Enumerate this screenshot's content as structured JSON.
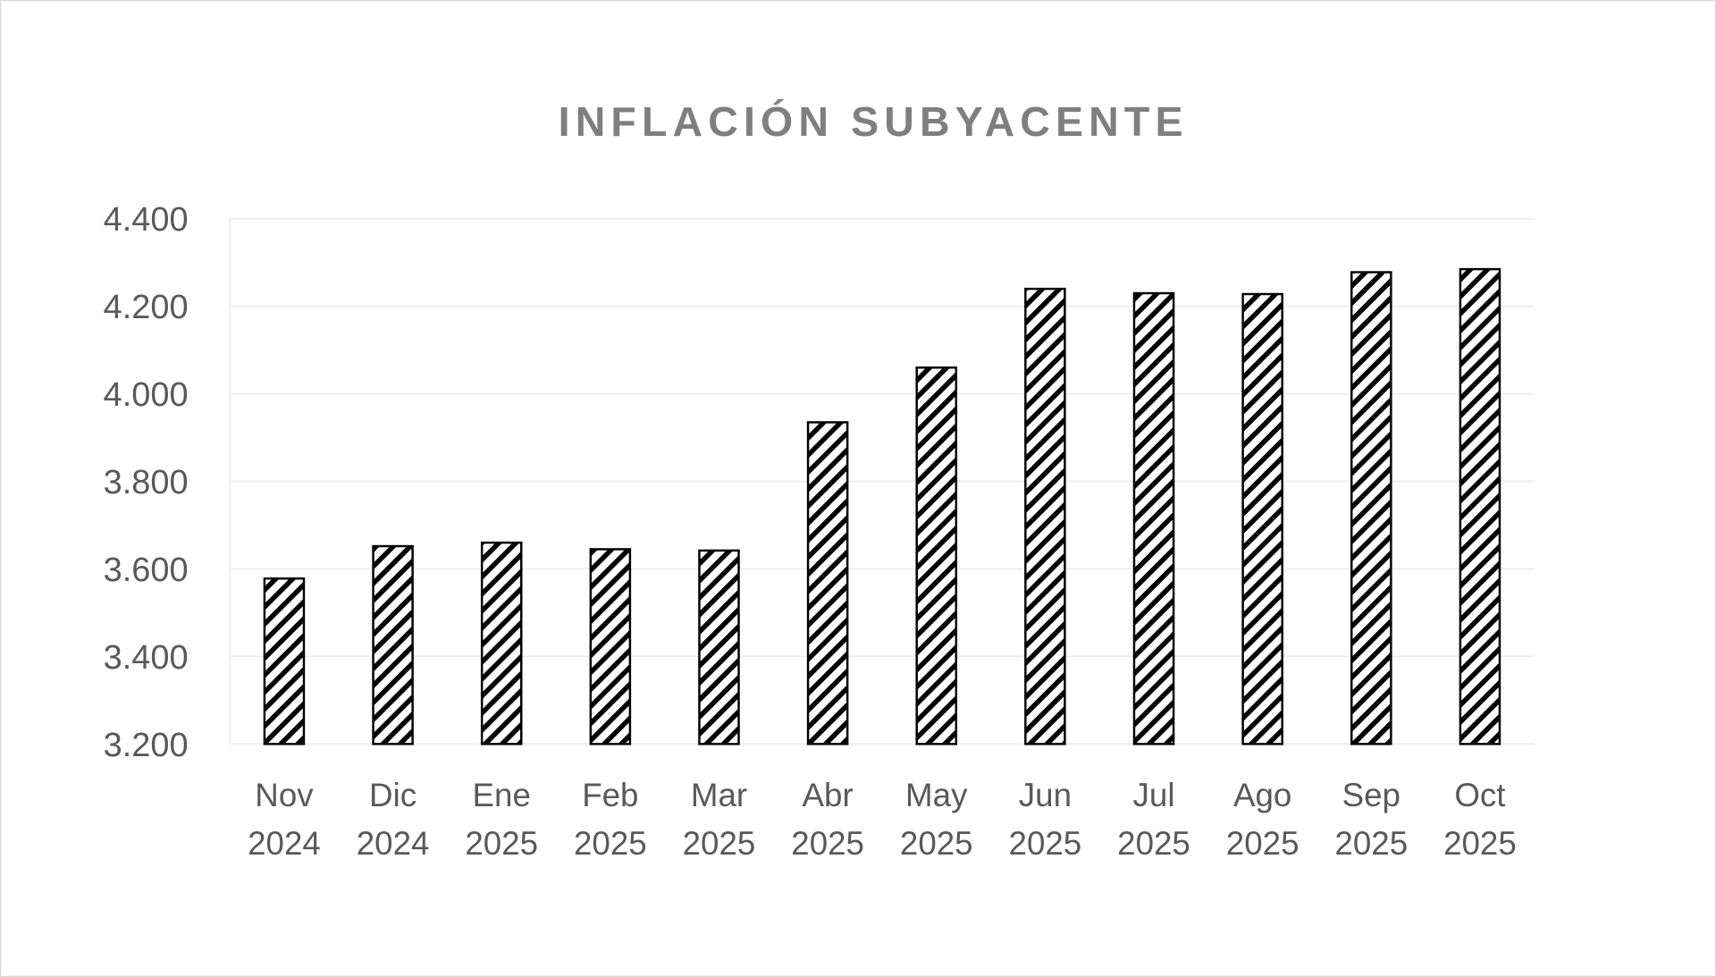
{
  "chart_data": {
    "type": "bar",
    "title": "INFLACIÓN SUBYACENTE",
    "xlabel": "",
    "ylabel": "",
    "categories": [
      [
        "Nov",
        "2024"
      ],
      [
        "Dic",
        "2024"
      ],
      [
        "Ene",
        "2025"
      ],
      [
        "Feb",
        "2025"
      ],
      [
        "Mar",
        "2025"
      ],
      [
        "Abr",
        "2025"
      ],
      [
        "May",
        "2025"
      ],
      [
        "Jun",
        "2025"
      ],
      [
        "Jul",
        "2025"
      ],
      [
        "Ago",
        "2025"
      ],
      [
        "Sep",
        "2025"
      ],
      [
        "Oct",
        "2025"
      ]
    ],
    "values": [
      3.578,
      3.652,
      3.66,
      3.645,
      3.642,
      3.935,
      4.06,
      4.24,
      4.23,
      4.228,
      4.278,
      4.285
    ],
    "ylim": [
      3.2,
      4.4
    ],
    "yticks": [
      3.2,
      3.4,
      3.6,
      3.8,
      4.0,
      4.2,
      4.4
    ],
    "ytick_labels": [
      "3.200",
      "3.400",
      "3.600",
      "3.800",
      "4.000",
      "4.200",
      "4.400"
    ],
    "grid": true,
    "legend": "none",
    "bar_fill": "black-white diagonal hatch",
    "colors": {
      "bar_stroke": "#000000",
      "text": "#595959",
      "title": "#7f7f7f",
      "grid": "#ececec"
    }
  }
}
